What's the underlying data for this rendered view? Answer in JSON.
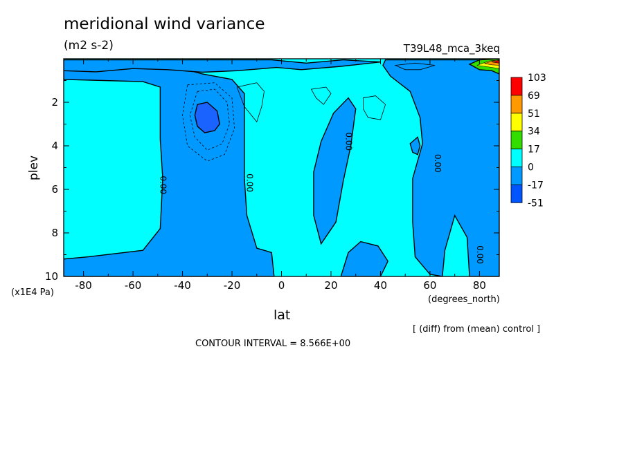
{
  "header": {
    "title": "meridional wind variance",
    "units": "(m2 s-2)",
    "run_label": "T39L48_mca_3keq"
  },
  "footer": {
    "note": "[ (diff) from (mean) control ]",
    "contour_interval": "CONTOUR INTERVAL = 8.566E+00"
  },
  "chart_data": {
    "type": "contour",
    "xlabel": "lat",
    "ylabel": "plev",
    "x_unit_label": "(degrees_north)",
    "y_unit_label": "(x1E4 Pa)",
    "xlim": [
      -88,
      88
    ],
    "ylim": [
      0,
      10
    ],
    "y_inverted": true,
    "x_ticks": [
      -80,
      -60,
      -40,
      -20,
      0,
      20,
      40,
      60,
      80
    ],
    "y_ticks": [
      2,
      4,
      6,
      8,
      10
    ],
    "zero_contour_label": "0.00",
    "legend": {
      "position": "right",
      "levels": [
        "103",
        "69",
        "51",
        "34",
        "17",
        "0",
        "-17",
        "-51"
      ],
      "colors": [
        "#ff0000",
        "#ff9900",
        "#ffff00",
        "#33dd00",
        "#00ffff",
        "#0099ff",
        "#0055ff"
      ]
    },
    "background_color": "#00ffff",
    "negative_color": "#0099ff",
    "strong_negative_color": "#1b63ff",
    "regions": [
      {
        "name": "southern-negative-lobe",
        "level": "negative",
        "points": [
          [
            -88,
            0.15
          ],
          [
            -45,
            0.15
          ],
          [
            -40,
            0.45
          ],
          [
            -32,
            0.7
          ],
          [
            -20,
            0.95
          ],
          [
            -15,
            1.6
          ],
          [
            -15,
            3.3
          ],
          [
            -15,
            5.5
          ],
          [
            -14,
            7.2
          ],
          [
            -10,
            8.7
          ],
          [
            -4,
            8.9
          ],
          [
            -3,
            10
          ],
          [
            -88,
            10
          ],
          [
            -88,
            9.2
          ],
          [
            -78,
            9.1
          ],
          [
            -56,
            8.8
          ],
          [
            -49,
            7.8
          ],
          [
            -48,
            5.5
          ],
          [
            -49,
            3.7
          ],
          [
            -49,
            1.3
          ],
          [
            -56,
            1.05
          ],
          [
            -88,
            0.95
          ]
        ]
      },
      {
        "name": "top-strip-negative",
        "level": "negative",
        "points": [
          [
            -88,
            0.05
          ],
          [
            -4,
            0.05
          ],
          [
            10,
            0.2
          ],
          [
            25,
            0.05
          ],
          [
            40,
            0.15
          ],
          [
            24,
            0.35
          ],
          [
            8,
            0.5
          ],
          [
            -2,
            0.4
          ],
          [
            -18,
            0.55
          ],
          [
            -32,
            0.62
          ],
          [
            -46,
            0.5
          ],
          [
            -60,
            0.45
          ],
          [
            -75,
            0.6
          ],
          [
            -88,
            0.55
          ]
        ]
      },
      {
        "name": "central-negative-tongue",
        "level": "negative",
        "points": [
          [
            27,
            1.8
          ],
          [
            30,
            2.3
          ],
          [
            28,
            4.0
          ],
          [
            25,
            5.6
          ],
          [
            22,
            7.5
          ],
          [
            16,
            8.5
          ],
          [
            13,
            7.2
          ],
          [
            13,
            5.2
          ],
          [
            16,
            3.8
          ],
          [
            21,
            2.5
          ]
        ]
      },
      {
        "name": "lower-negative-lobe",
        "level": "negative",
        "points": [
          [
            24,
            10
          ],
          [
            27,
            8.9
          ],
          [
            32,
            8.4
          ],
          [
            39,
            8.6
          ],
          [
            43,
            9.3
          ],
          [
            40,
            10
          ]
        ]
      },
      {
        "name": "small-negative-patch",
        "level": "negative",
        "points": [
          [
            52,
            3.9
          ],
          [
            55,
            3.6
          ],
          [
            56,
            4.0
          ],
          [
            55,
            4.4
          ],
          [
            53,
            4.3
          ]
        ]
      },
      {
        "name": "eastern-negative-region",
        "level": "negative",
        "points": [
          [
            42,
            0.05
          ],
          [
            88,
            0.05
          ],
          [
            88,
            10
          ],
          [
            76,
            10
          ],
          [
            75,
            8.2
          ],
          [
            70,
            7.2
          ],
          [
            66,
            8.8
          ],
          [
            65,
            10
          ],
          [
            60,
            9.9
          ],
          [
            54,
            9.1
          ],
          [
            53,
            7.5
          ],
          [
            53,
            5.5
          ],
          [
            57,
            3.9
          ],
          [
            56,
            2.7
          ],
          [
            52,
            1.5
          ],
          [
            44,
            0.8
          ],
          [
            41,
            0.3
          ]
        ]
      },
      {
        "name": "polar-vortex-core",
        "level": "strong_negative",
        "points": [
          [
            -34,
            2.1
          ],
          [
            -30,
            2.0
          ],
          [
            -26,
            2.4
          ],
          [
            -25,
            3.0
          ],
          [
            -27,
            3.3
          ],
          [
            -31,
            3.4
          ],
          [
            -34,
            3.1
          ],
          [
            -35,
            2.6
          ]
        ]
      },
      {
        "name": "top-right-positive-cap",
        "level": "positive",
        "points": [
          [
            76,
            0.25
          ],
          [
            80,
            0.05
          ],
          [
            88,
            0.0
          ],
          [
            88,
            0.7
          ],
          [
            85,
            0.55
          ],
          [
            80,
            0.5
          ]
        ]
      }
    ]
  }
}
